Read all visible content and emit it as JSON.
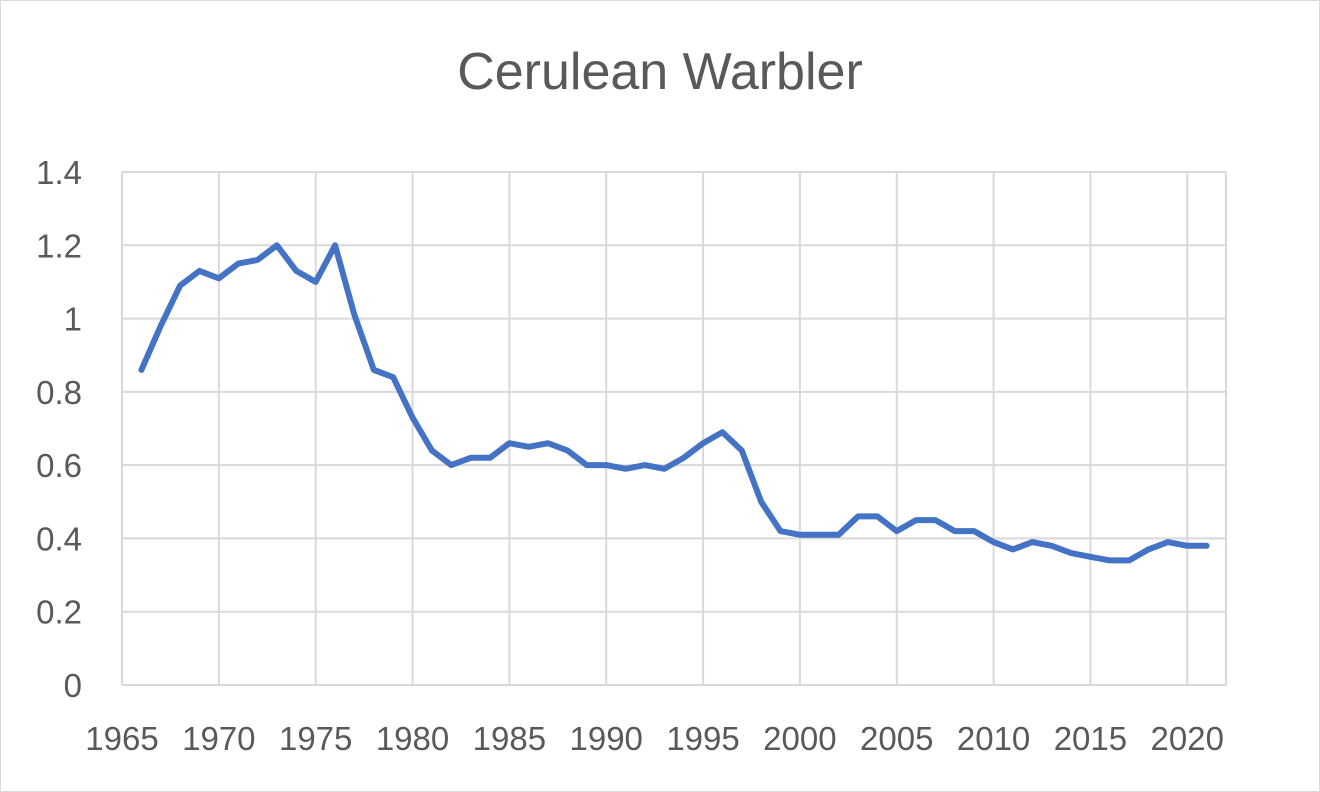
{
  "chart_data": {
    "type": "line",
    "title": "Cerulean Warbler",
    "xlabel": "",
    "ylabel": "",
    "xlim": [
      1965,
      2022
    ],
    "ylim": [
      0,
      1.4
    ],
    "x_ticks": [
      1965,
      1970,
      1975,
      1980,
      1985,
      1990,
      1995,
      2000,
      2005,
      2010,
      2015,
      2020
    ],
    "y_ticks": [
      0,
      0.2,
      0.4,
      0.6,
      0.8,
      1,
      1.2,
      1.4
    ],
    "grid": true,
    "legend": "none",
    "series": [
      {
        "color": "#4472c4",
        "x": [
          1966,
          1967,
          1968,
          1969,
          1970,
          1971,
          1972,
          1973,
          1974,
          1975,
          1976,
          1977,
          1978,
          1979,
          1980,
          1981,
          1982,
          1983,
          1984,
          1985,
          1986,
          1987,
          1988,
          1989,
          1990,
          1991,
          1992,
          1993,
          1994,
          1995,
          1996,
          1997,
          1998,
          1999,
          2000,
          2001,
          2002,
          2003,
          2004,
          2005,
          2006,
          2007,
          2008,
          2009,
          2010,
          2011,
          2012,
          2013,
          2014,
          2015,
          2016,
          2017,
          2018,
          2019,
          2020,
          2021
        ],
        "y": [
          0.86,
          0.98,
          1.09,
          1.13,
          1.11,
          1.15,
          1.16,
          1.2,
          1.13,
          1.1,
          1.2,
          1.01,
          0.86,
          0.84,
          0.73,
          0.64,
          0.6,
          0.62,
          0.62,
          0.66,
          0.65,
          0.66,
          0.64,
          0.6,
          0.6,
          0.59,
          0.6,
          0.59,
          0.62,
          0.66,
          0.69,
          0.64,
          0.5,
          0.42,
          0.41,
          0.41,
          0.41,
          0.46,
          0.46,
          0.42,
          0.45,
          0.45,
          0.42,
          0.42,
          0.39,
          0.37,
          0.39,
          0.38,
          0.36,
          0.35,
          0.34,
          0.34,
          0.37,
          0.39,
          0.38,
          0.38
        ]
      }
    ]
  }
}
